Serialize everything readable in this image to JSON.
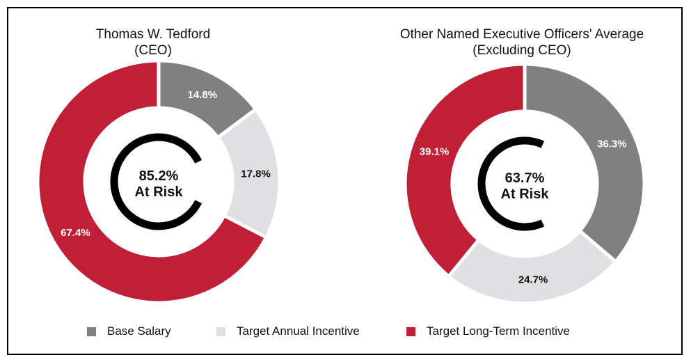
{
  "colors": {
    "base_salary": "#808080",
    "target_annual_incentive": "#e0e0e2",
    "target_long_term_incentive": "#c01f37",
    "ring": "#000000"
  },
  "legend": [
    {
      "label": "Base Salary",
      "color": "#808080"
    },
    {
      "label": "Target Annual Incentive",
      "color": "#e0e0e2"
    },
    {
      "label": "Target Long-Term Incentive",
      "color": "#c01f37"
    }
  ],
  "chart_data": [
    {
      "type": "pie",
      "title_line1": "Thomas W. Tedford",
      "title_line2": "(CEO)",
      "categories": [
        "Base Salary",
        "Target Annual Incentive",
        "Target Long-Term Incentive"
      ],
      "values": [
        14.8,
        17.8,
        67.4
      ],
      "value_labels": [
        "14.8%",
        "17.8%",
        "67.4%"
      ],
      "center_value": "85.2%",
      "center_label": "At Risk",
      "at_risk_pct": 85.2
    },
    {
      "type": "pie",
      "title_line1": "Other Named Executive Officers' Average",
      "title_line2": "(Excluding CEO)",
      "categories": [
        "Base Salary",
        "Target Annual Incentive",
        "Target Long-Term Incentive"
      ],
      "values": [
        36.3,
        24.7,
        39.1
      ],
      "value_labels": [
        "36.3%",
        "24.7%",
        "39.1%"
      ],
      "center_value": "63.7%",
      "center_label": "At Risk",
      "at_risk_pct": 63.7
    }
  ]
}
